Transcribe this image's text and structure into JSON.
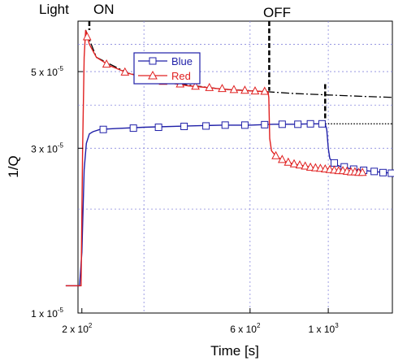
{
  "chart_data": {
    "type": "line",
    "xlabel": "Time [s]",
    "ylabel": "1/Q",
    "x_ticks": [
      {
        "value": 200,
        "label": "2 x 10",
        "exp": "2"
      },
      {
        "value": 600,
        "label": "6 x 10",
        "exp": "2"
      },
      {
        "value": 1000,
        "label": "1 x 10",
        "exp": "3"
      }
    ],
    "y_ticks": [
      {
        "value": 1e-05,
        "label": "1 x 10",
        "exp": "-5"
      },
      {
        "value": 3e-05,
        "label": "3 x 10",
        "exp": "-5"
      },
      {
        "value": 5e-05,
        "label": "5 x 10",
        "exp": "-5"
      }
    ],
    "xlim": [
      195,
      1520
    ],
    "ylim": [
      1e-05,
      7e-05
    ],
    "grid": true,
    "legend_position": "top-left",
    "annotations": {
      "light": "Light",
      "on": "ON",
      "off": "OFF"
    },
    "colors": {
      "blue": "#1f1fa8",
      "red": "#e02020",
      "black": "#000000",
      "grid": "#8888dd"
    },
    "series": [
      {
        "name": "Blue",
        "color": "#1f1fa8",
        "marker": "square",
        "points": [
          [
            180,
            1.2e-05
          ],
          [
            197,
            1.2e-05
          ],
          [
            200,
            1.5e-05
          ],
          [
            203,
            2.6e-05
          ],
          [
            206,
            3.1e-05
          ],
          [
            210,
            3.3e-05
          ],
          [
            215,
            3.35e-05
          ],
          [
            225,
            3.4e-05
          ],
          [
            250,
            3.42e-05
          ],
          [
            300,
            3.45e-05
          ],
          [
            400,
            3.48e-05
          ],
          [
            500,
            3.5e-05
          ],
          [
            600,
            3.5e-05
          ],
          [
            700,
            3.52e-05
          ],
          [
            800,
            3.52e-05
          ],
          [
            900,
            3.53e-05
          ],
          [
            980,
            3.53e-05
          ],
          [
            990,
            3.4e-05
          ],
          [
            1000,
            3e-05
          ],
          [
            1010,
            2.8e-05
          ],
          [
            1040,
            2.7e-05
          ],
          [
            1080,
            2.66e-05
          ],
          [
            1150,
            2.62e-05
          ],
          [
            1250,
            2.59e-05
          ],
          [
            1350,
            2.57e-05
          ],
          [
            1450,
            2.55e-05
          ],
          [
            1520,
            2.54e-05
          ]
        ],
        "marker_points": [
          [
            230,
            3.4e-05
          ],
          [
            280,
            3.43e-05
          ],
          [
            330,
            3.45e-05
          ],
          [
            390,
            3.47e-05
          ],
          [
            450,
            3.48e-05
          ],
          [
            510,
            3.5e-05
          ],
          [
            580,
            3.5e-05
          ],
          [
            660,
            3.51e-05
          ],
          [
            740,
            3.52e-05
          ],
          [
            820,
            3.52e-05
          ],
          [
            890,
            3.53e-05
          ],
          [
            960,
            3.53e-05
          ],
          [
            1040,
            2.72e-05
          ],
          [
            1110,
            2.65e-05
          ],
          [
            1180,
            2.61e-05
          ],
          [
            1260,
            2.59e-05
          ],
          [
            1350,
            2.57e-05
          ],
          [
            1430,
            2.55e-05
          ],
          [
            1510,
            2.54e-05
          ]
        ]
      },
      {
        "name": "Red",
        "color": "#e02020",
        "marker": "triangle",
        "points": [
          [
            180,
            1.2e-05
          ],
          [
            199,
            1.2e-05
          ],
          [
            201,
            3e-05
          ],
          [
            203,
            5.5e-05
          ],
          [
            205,
            6.6e-05
          ],
          [
            210,
            6e-05
          ],
          [
            220,
            5.5e-05
          ],
          [
            240,
            5.2e-05
          ],
          [
            270,
            4.95e-05
          ],
          [
            300,
            4.8e-05
          ],
          [
            350,
            4.65e-05
          ],
          [
            400,
            4.55e-05
          ],
          [
            450,
            4.5e-05
          ],
          [
            500,
            4.45e-05
          ],
          [
            550,
            4.42e-05
          ],
          [
            600,
            4.4e-05
          ],
          [
            650,
            4.38e-05
          ],
          [
            675,
            4.37e-05
          ],
          [
            678,
            4.2e-05
          ],
          [
            682,
            3.2e-05
          ],
          [
            690,
            2.95e-05
          ],
          [
            710,
            2.85e-05
          ],
          [
            750,
            2.75e-05
          ],
          [
            800,
            2.7e-05
          ],
          [
            900,
            2.64e-05
          ],
          [
            1000,
            2.61e-05
          ],
          [
            1100,
            2.58e-05
          ],
          [
            1200,
            2.56e-05
          ],
          [
            1250,
            2.55e-05
          ]
        ],
        "marker_points": [
          [
            207,
            6.3e-05
          ],
          [
            235,
            5.25e-05
          ],
          [
            265,
            4.98e-05
          ],
          [
            300,
            4.8e-05
          ],
          [
            340,
            4.68e-05
          ],
          [
            380,
            4.6e-05
          ],
          [
            420,
            4.53e-05
          ],
          [
            460,
            4.49e-05
          ],
          [
            500,
            4.46e-05
          ],
          [
            540,
            4.43e-05
          ],
          [
            580,
            4.41e-05
          ],
          [
            620,
            4.39e-05
          ],
          [
            660,
            4.38e-05
          ],
          [
            710,
            2.85e-05
          ],
          [
            740,
            2.78e-05
          ],
          [
            770,
            2.73e-05
          ],
          [
            800,
            2.7e-05
          ],
          [
            830,
            2.68e-05
          ],
          [
            860,
            2.66e-05
          ],
          [
            890,
            2.64e-05
          ],
          [
            920,
            2.63e-05
          ],
          [
            950,
            2.62e-05
          ],
          [
            980,
            2.61e-05
          ],
          [
            1010,
            2.6e-05
          ],
          [
            1040,
            2.59e-05
          ],
          [
            1070,
            2.58e-05
          ],
          [
            1100,
            2.58e-05
          ],
          [
            1130,
            2.57e-05
          ],
          [
            1160,
            2.56e-05
          ],
          [
            1190,
            2.56e-05
          ],
          [
            1220,
            2.55e-05
          ],
          [
            1250,
            2.55e-05
          ]
        ]
      }
    ],
    "reference_lines": [
      {
        "style": "dashdot",
        "color": "#000000",
        "points": [
          [
            205,
            6.6e-05
          ],
          [
            220,
            5.5e-05
          ],
          [
            270,
            4.95e-05
          ],
          [
            350,
            4.65e-05
          ],
          [
            500,
            4.45e-05
          ],
          [
            675,
            4.37e-05
          ],
          [
            800,
            4.32e-05
          ],
          [
            1000,
            4.28e-05
          ],
          [
            1250,
            4.24e-05
          ],
          [
            1520,
            4.21e-05
          ]
        ]
      },
      {
        "style": "dotted",
        "color": "#000000",
        "points": [
          [
            980,
            3.53e-05
          ],
          [
            1520,
            3.53e-05
          ]
        ]
      }
    ],
    "event_markers": [
      {
        "label_key": "on",
        "x": 210,
        "y_from": 6.6e-05,
        "y_to": 7e-05
      },
      {
        "label_key": "off",
        "x": 680,
        "y_from": 4.4e-05,
        "y_to": 7e-05
      },
      {
        "label_key": "off_blue",
        "x": 980,
        "y_from": 3.6e-05,
        "y_to": 4.6e-05
      }
    ]
  }
}
